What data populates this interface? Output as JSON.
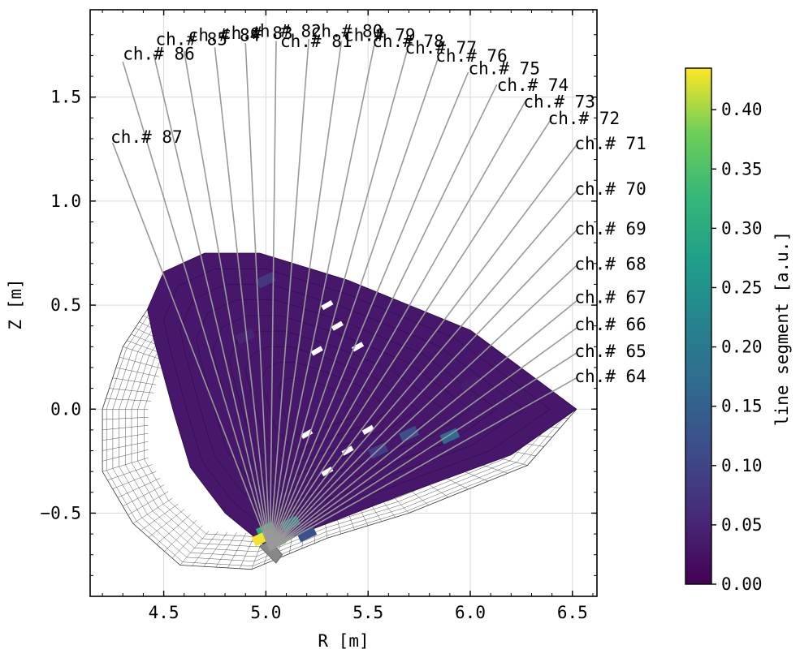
{
  "chart_data": {
    "type": "heatmap",
    "title": "",
    "xlabel": "R [m]",
    "ylabel": "Z [m]",
    "xlim": [
      4.14,
      6.62
    ],
    "ylim": [
      -0.9,
      1.92
    ],
    "xticks": [
      {
        "value": 4.5,
        "label": "4.5"
      },
      {
        "value": 5.0,
        "label": "5.0"
      },
      {
        "value": 5.5,
        "label": "5.5"
      },
      {
        "value": 6.0,
        "label": "6.0"
      },
      {
        "value": 6.5,
        "label": "6.5"
      }
    ],
    "yticks": [
      {
        "value": -0.5,
        "label": "−0.5"
      },
      {
        "value": 0.0,
        "label": "0.0"
      },
      {
        "value": 0.5,
        "label": "0.5"
      },
      {
        "value": 1.0,
        "label": "1.0"
      },
      {
        "value": 1.5,
        "label": "1.5"
      }
    ],
    "grid": true,
    "colormap": "viridis",
    "colorbar": {
      "label": "line segment [a.u.]",
      "range": [
        0.0,
        0.435
      ],
      "ticks": [
        {
          "value": 0.0,
          "label": "0.00"
        },
        {
          "value": 0.05,
          "label": "0.05"
        },
        {
          "value": 0.1,
          "label": "0.10"
        },
        {
          "value": 0.15,
          "label": "0.15"
        },
        {
          "value": 0.2,
          "label": "0.20"
        },
        {
          "value": 0.25,
          "label": "0.25"
        },
        {
          "value": 0.3,
          "label": "0.30"
        },
        {
          "value": 0.35,
          "label": "0.35"
        },
        {
          "value": 0.4,
          "label": "0.40"
        }
      ]
    },
    "origin": {
      "R": 5.02,
      "Z": -0.68
    },
    "channels": [
      {
        "label": "ch.# 64",
        "end": [
          6.52,
          0.15
        ]
      },
      {
        "label": "ch.# 65",
        "end": [
          6.52,
          0.27
        ]
      },
      {
        "label": "ch.# 66",
        "end": [
          6.52,
          0.39
        ]
      },
      {
        "label": "ch.# 67",
        "end": [
          6.52,
          0.52
        ]
      },
      {
        "label": "ch.# 68",
        "end": [
          6.52,
          0.69
        ]
      },
      {
        "label": "ch.# 69",
        "end": [
          6.52,
          0.86
        ]
      },
      {
        "label": "ch.# 70",
        "end": [
          6.52,
          1.05
        ]
      },
      {
        "label": "ch.# 71",
        "end": [
          6.52,
          1.27
        ]
      },
      {
        "label": "ch.# 72",
        "end": [
          6.4,
          1.4
        ]
      },
      {
        "label": "ch.# 73",
        "end": [
          6.27,
          1.48
        ]
      },
      {
        "label": "ch.# 74",
        "end": [
          6.13,
          1.56
        ]
      },
      {
        "label": "ch.# 75",
        "end": [
          5.99,
          1.62
        ]
      },
      {
        "label": "ch.# 76",
        "end": [
          5.84,
          1.68
        ]
      },
      {
        "label": "ch.# 77",
        "end": [
          5.69,
          1.72
        ]
      },
      {
        "label": "ch.# 78",
        "end": [
          5.53,
          1.75
        ]
      },
      {
        "label": "ch.# 79",
        "end": [
          5.37,
          1.77
        ]
      },
      {
        "label": "ch.# 80",
        "end": [
          5.21,
          1.78
        ]
      },
      {
        "label": "ch.# 81",
        "end": [
          5.05,
          1.77
        ]
      },
      {
        "label": "ch.# 82",
        "end": [
          4.9,
          1.76
        ]
      },
      {
        "label": "ch.# 83",
        "end": [
          4.75,
          1.74
        ]
      },
      {
        "label": "ch.# 84",
        "end": [
          4.6,
          1.72
        ]
      },
      {
        "label": "ch.# 85",
        "end": [
          4.45,
          1.71
        ]
      },
      {
        "label": "ch.# 86",
        "end": [
          4.3,
          1.67
        ]
      },
      {
        "label": "ch.# 87",
        "end": [
          4.25,
          1.28
        ]
      }
    ],
    "channel_label_positions": [
      {
        "R": 6.51,
        "Z": 0.13
      },
      {
        "R": 6.51,
        "Z": 0.25
      },
      {
        "R": 6.51,
        "Z": 0.38
      },
      {
        "R": 6.51,
        "Z": 0.51
      },
      {
        "R": 6.51,
        "Z": 0.67
      },
      {
        "R": 6.51,
        "Z": 0.84
      },
      {
        "R": 6.51,
        "Z": 1.03
      },
      {
        "R": 6.51,
        "Z": 1.25
      },
      {
        "R": 6.38,
        "Z": 1.37
      },
      {
        "R": 6.26,
        "Z": 1.45
      },
      {
        "R": 6.13,
        "Z": 1.53
      },
      {
        "R": 5.99,
        "Z": 1.61
      },
      {
        "R": 5.83,
        "Z": 1.67
      },
      {
        "R": 5.68,
        "Z": 1.71
      },
      {
        "R": 5.52,
        "Z": 1.74
      },
      {
        "R": 5.38,
        "Z": 1.77
      },
      {
        "R": 5.22,
        "Z": 1.79
      },
      {
        "R": 5.07,
        "Z": 1.74
      },
      {
        "R": 4.92,
        "Z": 1.79
      },
      {
        "R": 4.78,
        "Z": 1.78
      },
      {
        "R": 4.62,
        "Z": 1.77
      },
      {
        "R": 4.46,
        "Z": 1.75
      },
      {
        "R": 4.3,
        "Z": 1.68
      },
      {
        "R": 4.24,
        "Z": 1.28
      }
    ],
    "plasma_boundary": [
      [
        4.97,
        0.75
      ],
      [
        5.4,
        0.62
      ],
      [
        6.0,
        0.38
      ],
      [
        6.52,
        0.0
      ],
      [
        6.2,
        -0.22
      ],
      [
        5.7,
        -0.4
      ],
      [
        5.3,
        -0.55
      ],
      [
        5.0,
        -0.66
      ],
      [
        4.8,
        -0.5
      ],
      [
        4.63,
        -0.28
      ],
      [
        4.55,
        -0.02
      ],
      [
        4.5,
        0.16
      ],
      [
        4.45,
        0.34
      ],
      [
        4.42,
        0.48
      ],
      [
        4.5,
        0.66
      ],
      [
        4.7,
        0.75
      ]
    ],
    "outer_grid_boundary": [
      [
        4.42,
        0.48
      ],
      [
        4.3,
        0.3
      ],
      [
        4.2,
        0.0
      ],
      [
        4.2,
        -0.3
      ],
      [
        4.35,
        -0.55
      ],
      [
        4.58,
        -0.75
      ],
      [
        4.93,
        -0.77
      ],
      [
        5.3,
        -0.62
      ],
      [
        5.7,
        -0.5
      ],
      [
        6.28,
        -0.27
      ],
      [
        6.52,
        0.0
      ]
    ],
    "colored_cells": [
      {
        "R": 5.2,
        "Z": 0.15,
        "v": 0.03
      },
      {
        "R": 5.6,
        "Z": 0.2,
        "v": 0.03
      },
      {
        "R": 6.0,
        "Z": 0.12,
        "v": 0.04
      },
      {
        "R": 4.9,
        "Z": 0.35,
        "v": 0.05
      },
      {
        "R": 5.0,
        "Z": 0.62,
        "v": 0.08
      },
      {
        "R": 5.7,
        "Z": -0.12,
        "v": 0.12
      },
      {
        "R": 5.9,
        "Z": -0.13,
        "v": 0.17
      },
      {
        "R": 5.55,
        "Z": -0.2,
        "v": 0.09
      },
      {
        "R": 5.12,
        "Z": -0.55,
        "v": 0.22
      },
      {
        "R": 5.0,
        "Z": -0.58,
        "v": 0.3
      },
      {
        "R": 5.05,
        "Z": -0.64,
        "v": 0.38
      },
      {
        "R": 4.98,
        "Z": -0.62,
        "v": 0.43
      },
      {
        "R": 5.2,
        "Z": -0.6,
        "v": 0.12
      }
    ]
  }
}
